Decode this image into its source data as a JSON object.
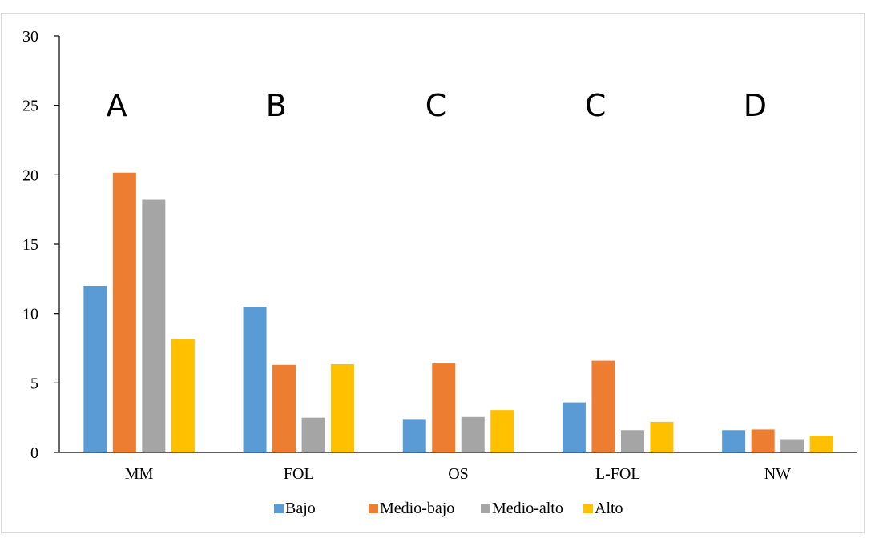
{
  "chart_data": {
    "type": "bar",
    "categories": [
      "MM",
      "FOL",
      "OS",
      "L-FOL",
      "NW"
    ],
    "series": [
      {
        "name": "Bajo",
        "values": [
          12.0,
          10.5,
          2.4,
          3.6,
          1.6
        ]
      },
      {
        "name": "Medio-bajo",
        "values": [
          20.15,
          6.3,
          6.4,
          6.6,
          1.65
        ]
      },
      {
        "name": "Medio-alto",
        "values": [
          18.2,
          2.5,
          2.55,
          1.6,
          0.95
        ]
      },
      {
        "name": "Alto",
        "values": [
          8.15,
          6.35,
          3.05,
          2.2,
          1.2
        ]
      }
    ],
    "group_letters": [
      "A",
      "B",
      "C",
      "C",
      "D"
    ],
    "yticks": [
      0,
      5,
      10,
      15,
      20,
      25,
      30
    ],
    "ylim": [
      0,
      30
    ],
    "grid": false,
    "legend_position": "bottom",
    "colors": [
      "#5b9bd5",
      "#ed7d31",
      "#a5a5a5",
      "#ffc000"
    ],
    "title": "",
    "xlabel": "",
    "ylabel": ""
  }
}
